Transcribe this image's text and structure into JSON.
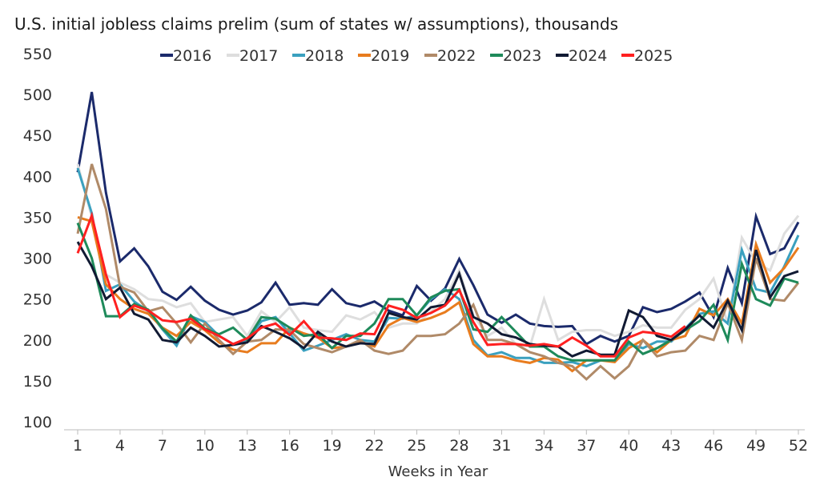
{
  "chart_data": {
    "type": "line",
    "title": "U.S. initial jobless claims prelim (sum of states w/ assumptions), thousands",
    "xlabel": "Weeks in Year",
    "ylabel": "",
    "ylim": [
      100,
      550
    ],
    "yticks": [
      100,
      150,
      200,
      250,
      300,
      350,
      400,
      450,
      500,
      550
    ],
    "xlim": [
      1,
      52
    ],
    "xticks": [
      1,
      4,
      7,
      10,
      13,
      16,
      19,
      22,
      25,
      28,
      31,
      34,
      37,
      40,
      43,
      46,
      49,
      52
    ],
    "grid": false,
    "legend": "top",
    "series": [
      {
        "name": "2016",
        "color": "#1b2a6b",
        "values": [
          405,
          503,
          380,
          296,
          312,
          290,
          259,
          249,
          265,
          248,
          237,
          231,
          236,
          246,
          270,
          243,
          245,
          243,
          262,
          245,
          241,
          247,
          236,
          230,
          266,
          248,
          263,
          299,
          267,
          231,
          221,
          231,
          220,
          217,
          216,
          217,
          195,
          205,
          198,
          205,
          240,
          234,
          238,
          247,
          258,
          228,
          288,
          245,
          351,
          305,
          312,
          344
        ]
      },
      {
        "name": "2017",
        "color": "#dedede",
        "values": [
          415,
          350,
          280,
          270,
          262,
          250,
          248,
          240,
          245,
          222,
          225,
          228,
          205,
          235,
          222,
          240,
          215,
          212,
          210,
          230,
          225,
          234,
          215,
          220,
          220,
          235,
          250,
          285,
          230,
          205,
          215,
          195,
          192,
          250,
          200,
          210,
          212,
          212,
          205,
          210,
          218,
          215,
          215,
          237,
          250,
          275,
          220,
          325,
          295,
          285,
          330,
          352
        ]
      },
      {
        "name": "2018",
        "color": "#3aa0bf",
        "values": [
          410,
          355,
          260,
          268,
          247,
          235,
          213,
          193,
          229,
          222,
          205,
          195,
          200,
          223,
          228,
          208,
          187,
          193,
          200,
          207,
          200,
          198,
          227,
          226,
          230,
          250,
          262,
          250,
          200,
          181,
          185,
          178,
          178,
          172,
          172,
          173,
          168,
          175,
          175,
          195,
          190,
          198,
          198,
          214,
          232,
          235,
          220,
          310,
          262,
          258,
          290,
          328
        ]
      },
      {
        "name": "2019",
        "color": "#e87c1e",
        "values": [
          350,
          345,
          268,
          250,
          238,
          232,
          215,
          205,
          222,
          212,
          197,
          188,
          185,
          196,
          196,
          215,
          208,
          203,
          190,
          192,
          198,
          192,
          218,
          227,
          222,
          227,
          234,
          246,
          195,
          180,
          180,
          175,
          172,
          178,
          176,
          162,
          175,
          175,
          173,
          190,
          200,
          185,
          200,
          205,
          238,
          230,
          250,
          220,
          317,
          270,
          288,
          313
        ]
      },
      {
        "name": "2022",
        "color": "#b08a68",
        "values": [
          330,
          415,
          360,
          265,
          258,
          235,
          240,
          220,
          197,
          220,
          200,
          183,
          198,
          200,
          213,
          212,
          195,
          190,
          185,
          192,
          200,
          187,
          183,
          187,
          205,
          205,
          207,
          220,
          243,
          200,
          200,
          195,
          185,
          180,
          172,
          168,
          152,
          168,
          153,
          168,
          200,
          180,
          185,
          187,
          205,
          200,
          245,
          200,
          300,
          250,
          248,
          270
        ]
      },
      {
        "name": "2023",
        "color": "#1e8a5a",
        "values": [
          343,
          300,
          229,
          229,
          244,
          237,
          214,
          198,
          230,
          214,
          207,
          215,
          200,
          228,
          226,
          215,
          205,
          207,
          190,
          205,
          205,
          220,
          250,
          250,
          230,
          252,
          260,
          262,
          213,
          210,
          228,
          210,
          192,
          192,
          180,
          175,
          175,
          175,
          175,
          198,
          183,
          190,
          200,
          212,
          223,
          243,
          200,
          293,
          250,
          242,
          275,
          270
        ]
      },
      {
        "name": "2024",
        "color": "#111a33",
        "values": [
          320,
          290,
          250,
          264,
          232,
          225,
          200,
          197,
          215,
          205,
          192,
          194,
          197,
          217,
          210,
          202,
          190,
          210,
          198,
          192,
          196,
          195,
          233,
          228,
          225,
          240,
          243,
          281,
          228,
          220,
          207,
          203,
          195,
          193,
          192,
          180,
          187,
          182,
          182,
          236,
          228,
          205,
          200,
          213,
          230,
          215,
          248,
          212,
          310,
          252,
          278,
          284
        ]
      },
      {
        "name": "2025",
        "color": "#ff2020",
        "values": [
          306,
          352,
          280,
          228,
          242,
          236,
          224,
          222,
          226,
          213,
          205,
          195,
          202,
          215,
          220,
          206,
          223,
          203,
          202,
          200,
          208,
          207,
          242,
          237,
          227,
          233,
          242,
          261,
          222,
          194,
          195,
          195,
          193,
          195,
          192,
          203,
          193,
          180,
          180,
          203,
          210,
          208,
          204,
          217
        ]
      }
    ]
  }
}
